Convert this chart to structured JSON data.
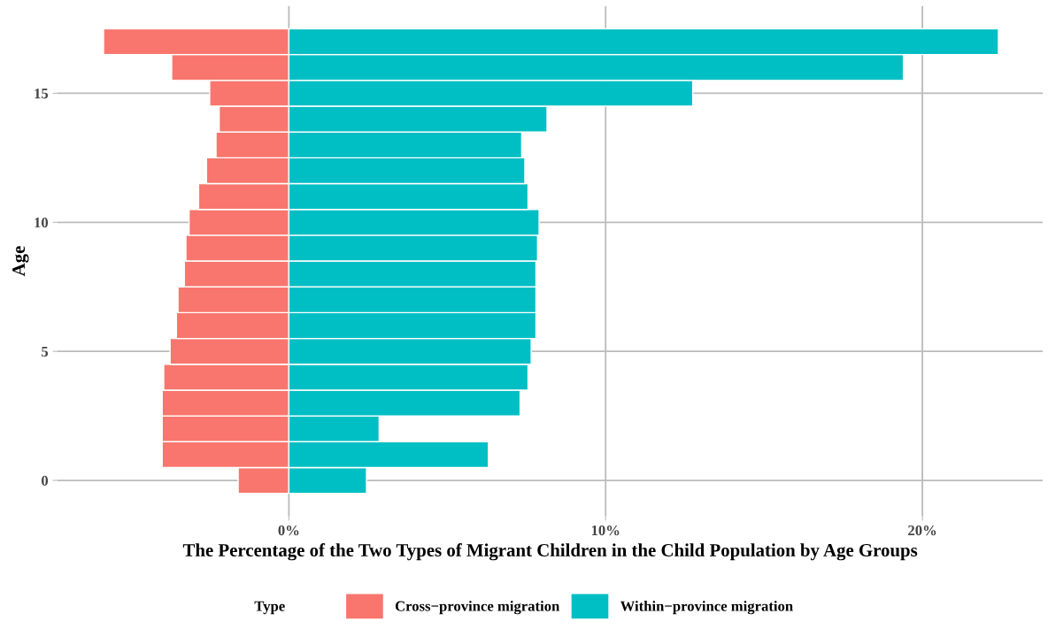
{
  "chart_data": {
    "type": "bar",
    "orientation": "horizontal",
    "stacked": true,
    "xlabel": "The Percentage of the Two Types of Migrant Children in the Child Population by Age Groups",
    "ylabel": "Age",
    "legend_title": "Type",
    "legend": "bottom",
    "grid": true,
    "x": [
      0,
      1,
      2,
      3,
      4,
      5,
      6,
      7,
      8,
      9,
      10,
      11,
      12,
      13,
      14,
      15,
      16,
      17
    ],
    "series": [
      {
        "name": "Cross−province migration",
        "color": "#f8766d",
        "values": [
          -1.6,
          -4.0,
          -4.0,
          -4.0,
          -3.95,
          -3.75,
          -3.55,
          -3.5,
          -3.3,
          -3.25,
          -3.15,
          -2.85,
          -2.6,
          -2.3,
          -2.2,
          -2.5,
          -3.7,
          -5.85
        ]
      },
      {
        "name": "Within−province migration",
        "color": "#00bfc4",
        "values": [
          2.45,
          6.3,
          2.85,
          7.3,
          7.55,
          7.65,
          7.8,
          7.8,
          7.8,
          7.85,
          7.9,
          7.55,
          7.45,
          7.35,
          8.15,
          12.75,
          19.4,
          22.4
        ]
      }
    ],
    "xlim": [
      -7.3,
      23.8
    ],
    "xticks": [
      {
        "value": 0,
        "label": "0%"
      },
      {
        "value": 10,
        "label": "10%"
      },
      {
        "value": 20,
        "label": "20%"
      }
    ],
    "ylim": [
      -1.37,
      18.37
    ],
    "yticks": [
      0,
      5,
      10,
      15
    ]
  }
}
